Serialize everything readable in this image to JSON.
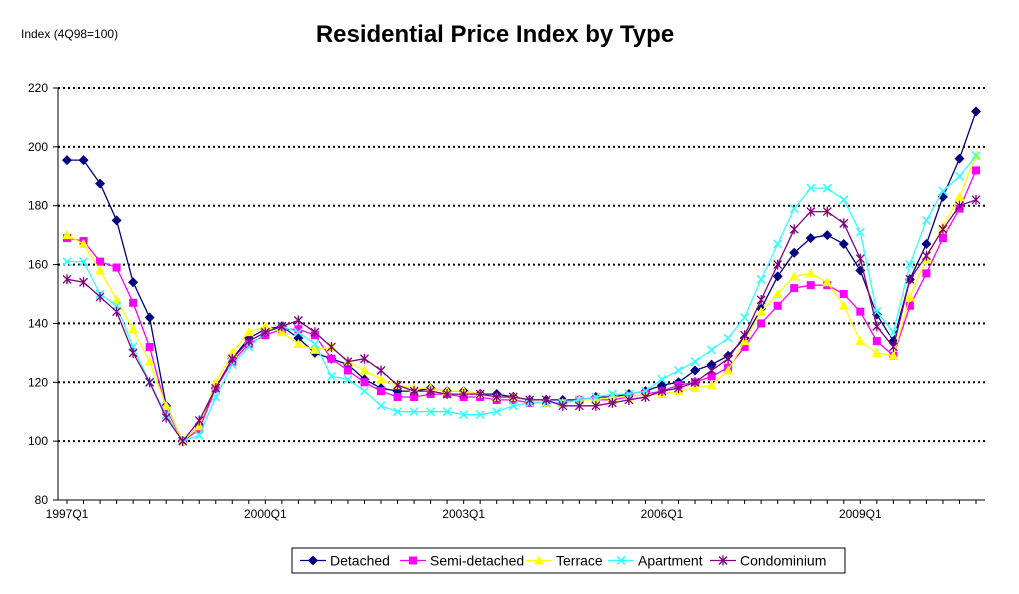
{
  "chart_data": {
    "type": "line",
    "title": "Residential Price Index by Type",
    "ylabel": "Index (4Q98=100)",
    "xlabel": "",
    "ylim": [
      80,
      220
    ],
    "yticks": [
      80,
      100,
      120,
      140,
      160,
      180,
      200,
      220
    ],
    "xtick_labels": [
      "1997Q1",
      "2000Q1",
      "2003Q1",
      "2006Q1",
      "2009Q1"
    ],
    "grid": "horizontal dotted",
    "legend_position": "bottom",
    "x": [
      "1997Q1",
      "1997Q2",
      "1997Q3",
      "1997Q4",
      "1998Q1",
      "1998Q2",
      "1998Q3",
      "1998Q4",
      "1999Q1",
      "1999Q2",
      "1999Q3",
      "1999Q4",
      "2000Q1",
      "2000Q2",
      "2000Q3",
      "2000Q4",
      "2001Q1",
      "2001Q2",
      "2001Q3",
      "2001Q4",
      "2002Q1",
      "2002Q2",
      "2002Q3",
      "2002Q4",
      "2003Q1",
      "2003Q2",
      "2003Q3",
      "2003Q4",
      "2004Q1",
      "2004Q2",
      "2004Q3",
      "2004Q4",
      "2005Q1",
      "2005Q2",
      "2005Q3",
      "2005Q4",
      "2006Q1",
      "2006Q2",
      "2006Q3",
      "2006Q4",
      "2007Q1",
      "2007Q2",
      "2007Q3",
      "2007Q4",
      "2008Q1",
      "2008Q2",
      "2008Q3",
      "2008Q4",
      "2009Q1",
      "2009Q2",
      "2009Q3",
      "2009Q4",
      "2010Q1",
      "2010Q2",
      "2010Q3",
      "2010Q4"
    ],
    "series": [
      {
        "name": "Detached",
        "color": "#000080",
        "marker": "diamond",
        "values": [
          195.5,
          195.5,
          187.5,
          175,
          154,
          142,
          112,
          100,
          105,
          118,
          128,
          135,
          138,
          139,
          135,
          130,
          128,
          126,
          121,
          118,
          117,
          117,
          118,
          117,
          117,
          116,
          116,
          115,
          114,
          114,
          114,
          114,
          115,
          115,
          116,
          117,
          119,
          120,
          124,
          126,
          129,
          135,
          145,
          156,
          164,
          169,
          170,
          167,
          158,
          143,
          134,
          155,
          167,
          183,
          196,
          212
        ]
      },
      {
        "name": "Semi-detached",
        "color": "#ff00ff",
        "marker": "square",
        "values": [
          169,
          168,
          161,
          159,
          147,
          132,
          111,
          100,
          104,
          118,
          127,
          133,
          136,
          138,
          138,
          136,
          128,
          124,
          120,
          117,
          115,
          115,
          116,
          116,
          115,
          115,
          114,
          114,
          113,
          113,
          113,
          114,
          114,
          114,
          115,
          116,
          117,
          119,
          120,
          122,
          125,
          132,
          140,
          146,
          152,
          153,
          153,
          150,
          144,
          134,
          129,
          146,
          157,
          169,
          179,
          192
        ]
      },
      {
        "name": "Terrace",
        "color": "#ffff00",
        "marker": "triangle",
        "values": [
          170,
          167,
          158,
          148,
          138,
          127,
          112,
          100,
          105,
          120,
          130,
          137,
          139,
          137,
          133,
          131,
          132,
          127,
          124,
          121,
          119,
          118,
          118,
          117,
          117,
          116,
          115,
          115,
          114,
          113,
          113,
          114,
          114,
          115,
          115,
          116,
          116,
          117,
          118,
          119,
          124,
          134,
          144,
          150,
          156,
          157,
          154,
          146,
          134,
          130,
          129,
          149,
          162,
          173,
          183,
          197
        ]
      },
      {
        "name": "Apartment",
        "color": "#33ffff",
        "marker": "x",
        "values": [
          161,
          161,
          150,
          146,
          132,
          120,
          109,
          100,
          102,
          115,
          126,
          132,
          137,
          139,
          137,
          133,
          122,
          121,
          117,
          112,
          110,
          110,
          110,
          110,
          109,
          109,
          110,
          112,
          113,
          113,
          113,
          114,
          115,
          116,
          116,
          117,
          121,
          124,
          127,
          131,
          135,
          142,
          155,
          167,
          179,
          186,
          186,
          182,
          171,
          144,
          137,
          160,
          175,
          185,
          190,
          197
        ]
      },
      {
        "name": "Condominium",
        "color": "#800080",
        "marker": "asterisk",
        "values": [
          155,
          154,
          149,
          144,
          130,
          120,
          108,
          100,
          107,
          118,
          128,
          134,
          137,
          139,
          141,
          137,
          132,
          127,
          128,
          124,
          119,
          117,
          117,
          116,
          116,
          116,
          115,
          115,
          114,
          114,
          112,
          112,
          112,
          113,
          114,
          115,
          117,
          118,
          120,
          124,
          128,
          136,
          148,
          160,
          172,
          178,
          178,
          174,
          162,
          139,
          132,
          155,
          163,
          172,
          180,
          182
        ]
      }
    ]
  }
}
